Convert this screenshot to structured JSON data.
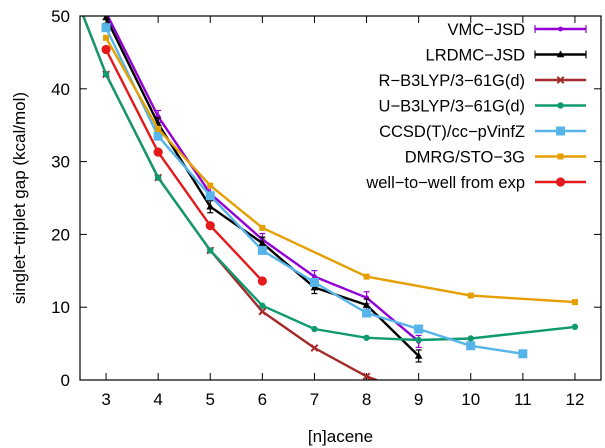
{
  "chart_data": {
    "type": "line",
    "title": "",
    "xlabel": "[n]acene",
    "ylabel": "singlet−triplet gap (kcal/mol)",
    "xlim": [
      2.5,
      12.5
    ],
    "ylim": [
      0,
      50
    ],
    "xticks": [
      "3",
      "4",
      "5",
      "6",
      "7",
      "8",
      "9",
      "10",
      "11",
      "12"
    ],
    "yticks": [
      "0",
      "10",
      "20",
      "30",
      "40",
      "50"
    ],
    "grid": false,
    "legend_position": "top-right",
    "series": [
      {
        "name": "VMC−JSD",
        "color": "#9400d3",
        "marker": "dot",
        "errorbars": true,
        "points": [
          [
            3,
            50.5
          ],
          [
            4,
            36.2
          ],
          [
            5,
            25.6
          ],
          [
            6,
            19.3
          ],
          [
            7,
            14.2
          ],
          [
            8,
            11.3
          ],
          [
            9,
            5.3
          ]
        ]
      },
      {
        "name": "LRDMC−JSD",
        "color": "#000000",
        "marker": "triangle",
        "errorbars": true,
        "points": [
          [
            3,
            49.8
          ],
          [
            4,
            35.2
          ],
          [
            5,
            23.8
          ],
          [
            6,
            18.8
          ],
          [
            7,
            12.7
          ],
          [
            8,
            10.3
          ],
          [
            9,
            3.3
          ]
        ]
      },
      {
        "name": "R−B3LYP/3−61G(d)",
        "color": "#a52a2a",
        "marker": "x",
        "points": [
          [
            2.4,
            53
          ],
          [
            3,
            42
          ],
          [
            4,
            27.8
          ],
          [
            5,
            17.8
          ],
          [
            6,
            9.4
          ],
          [
            7,
            4.4
          ],
          [
            8,
            0.5
          ],
          [
            8.3,
            -0.3
          ]
        ]
      },
      {
        "name": "U−B3LYP/3−61G(d)",
        "color": "#109a70",
        "marker": "circle",
        "points": [
          [
            2.4,
            53
          ],
          [
            3,
            42
          ],
          [
            4,
            27.8
          ],
          [
            5,
            17.8
          ],
          [
            6,
            10.2
          ],
          [
            7,
            7.0
          ],
          [
            8,
            5.8
          ],
          [
            9,
            5.5
          ],
          [
            10,
            5.7
          ],
          [
            12,
            7.3
          ]
        ]
      },
      {
        "name": "CCSD(T)/cc−pVinfZ",
        "color": "#56b4e9",
        "marker": "square",
        "points": [
          [
            3,
            48.4
          ],
          [
            4,
            33.5
          ],
          [
            5,
            25.3
          ],
          [
            6,
            17.8
          ],
          [
            7,
            13.4
          ],
          [
            8,
            9.2
          ],
          [
            9,
            7.0
          ],
          [
            10,
            4.7
          ],
          [
            11,
            3.6
          ]
        ]
      },
      {
        "name": "DMRG/STO−3G",
        "color": "#e69f00",
        "marker": "square-small",
        "points": [
          [
            3,
            47.0
          ],
          [
            4,
            34.5
          ],
          [
            5,
            26.7
          ],
          [
            6,
            20.9
          ],
          [
            8,
            14.2
          ],
          [
            10,
            11.6
          ],
          [
            12,
            10.7
          ]
        ]
      },
      {
        "name": "well−to−well from exp",
        "color": "#e41a1c",
        "marker": "circle-filled",
        "points": [
          [
            3,
            45.4
          ],
          [
            4,
            31.3
          ],
          [
            5,
            21.2
          ],
          [
            6,
            13.6
          ]
        ]
      }
    ]
  }
}
